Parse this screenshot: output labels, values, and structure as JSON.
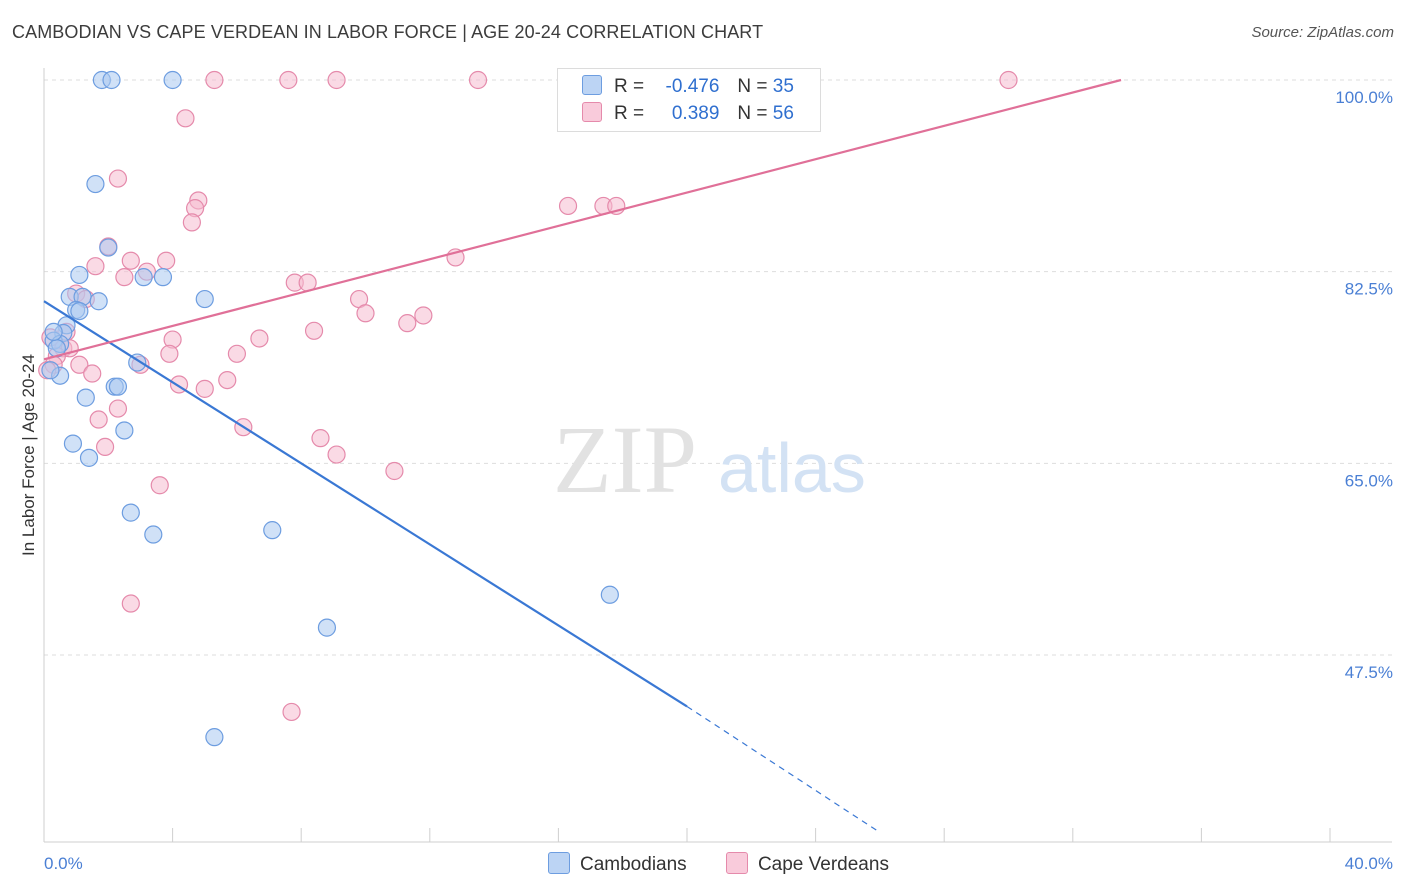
{
  "title": "CAMBODIAN VS CAPE VERDEAN IN LABOR FORCE | AGE 20-24 CORRELATION CHART",
  "source": "Source: ZipAtlas.com",
  "watermark": {
    "zip": "ZIP",
    "atlas": "atlas"
  },
  "colors": {
    "cambodian_fill": "#aac8f0",
    "cambodian_stroke": "#6d9de0",
    "cambodian_line": "#3a78d4",
    "capeverdean_fill": "#f6bcd0",
    "capeverdean_stroke": "#e58aab",
    "capeverdean_line": "#e07098",
    "tick_text": "#4a7fd4",
    "grid": "#dddddd"
  },
  "legend": {
    "rows": [
      {
        "r_label": "R =",
        "r_value": "-0.476",
        "n_label": "N =",
        "n_value": "35"
      },
      {
        "r_label": "R =",
        "r_value": "0.389",
        "n_label": "N =",
        "n_value": "56"
      }
    ]
  },
  "bottom_legend": {
    "cambodians": "Cambodians",
    "capeverdeans": "Cape Verdeans"
  },
  "chart_data": {
    "type": "scatter",
    "xlabel": "",
    "ylabel": "In Labor Force | Age 20-24",
    "xlim": [
      0,
      40
    ],
    "ylim": [
      31,
      101.5
    ],
    "x_tick_labels": [
      "0.0%",
      "40.0%"
    ],
    "y_ticks": [
      47.5,
      65.0,
      82.5,
      100.0
    ],
    "y_tick_labels": [
      "47.5%",
      "65.0%",
      "82.5%",
      "100.0%"
    ],
    "series": [
      {
        "name": "Cambodians",
        "r": -0.476,
        "n": 35,
        "trend": {
          "x0": 0,
          "y0": 79.8,
          "x1": 20,
          "y1": 42.8,
          "dash_x1": 26,
          "dash_y1": 31.3
        },
        "points": [
          [
            1.8,
            100
          ],
          [
            2.1,
            100
          ],
          [
            4.0,
            100
          ],
          [
            1.6,
            90.5
          ],
          [
            2.0,
            84.7
          ],
          [
            1.1,
            82.2
          ],
          [
            3.1,
            82.0
          ],
          [
            3.7,
            82.0
          ],
          [
            0.8,
            80.2
          ],
          [
            1.2,
            80.2
          ],
          [
            1.7,
            79.8
          ],
          [
            1.0,
            79.0
          ],
          [
            1.1,
            78.9
          ],
          [
            5.0,
            80.0
          ],
          [
            0.7,
            77.6
          ],
          [
            0.6,
            76.9
          ],
          [
            0.3,
            76.2
          ],
          [
            0.5,
            75.9
          ],
          [
            0.4,
            75.5
          ],
          [
            2.9,
            74.2
          ],
          [
            0.5,
            73.0
          ],
          [
            2.2,
            72.0
          ],
          [
            2.3,
            72.0
          ],
          [
            1.3,
            71.0
          ],
          [
            2.5,
            68.0
          ],
          [
            0.9,
            66.8
          ],
          [
            1.4,
            65.5
          ],
          [
            2.7,
            60.5
          ],
          [
            3.4,
            58.5
          ],
          [
            7.1,
            58.9
          ],
          [
            17.6,
            53.0
          ],
          [
            8.8,
            50.0
          ],
          [
            5.3,
            40.0
          ],
          [
            0.2,
            73.5
          ],
          [
            0.3,
            77.0
          ]
        ]
      },
      {
        "name": "Cape Verdeans",
        "r": 0.389,
        "n": 56,
        "trend": {
          "x0": 0,
          "y0": 74.5,
          "x1": 33.5,
          "y1": 100
        },
        "points": [
          [
            5.3,
            100
          ],
          [
            7.6,
            100
          ],
          [
            9.1,
            100
          ],
          [
            13.5,
            100
          ],
          [
            30.0,
            100
          ],
          [
            4.4,
            96.5
          ],
          [
            2.3,
            91.0
          ],
          [
            4.8,
            89.0
          ],
          [
            4.7,
            88.3
          ],
          [
            4.6,
            87.0
          ],
          [
            16.3,
            88.5
          ],
          [
            17.4,
            88.5
          ],
          [
            17.8,
            88.5
          ],
          [
            2.0,
            84.8
          ],
          [
            1.6,
            83.0
          ],
          [
            2.7,
            83.5
          ],
          [
            3.8,
            83.5
          ],
          [
            12.8,
            83.8
          ],
          [
            3.2,
            82.5
          ],
          [
            2.5,
            82.0
          ],
          [
            7.8,
            81.5
          ],
          [
            8.2,
            81.5
          ],
          [
            1.0,
            80.5
          ],
          [
            1.3,
            80.0
          ],
          [
            9.8,
            80.0
          ],
          [
            10.0,
            78.7
          ],
          [
            11.8,
            78.5
          ],
          [
            11.3,
            77.8
          ],
          [
            8.4,
            77.1
          ],
          [
            0.7,
            77.0
          ],
          [
            6.7,
            76.4
          ],
          [
            4.0,
            76.3
          ],
          [
            0.6,
            75.5
          ],
          [
            0.8,
            75.5
          ],
          [
            3.9,
            75.0
          ],
          [
            6.0,
            75.0
          ],
          [
            0.4,
            74.8
          ],
          [
            0.3,
            74.0
          ],
          [
            1.1,
            74.0
          ],
          [
            3.0,
            74.0
          ],
          [
            0.1,
            73.5
          ],
          [
            1.5,
            73.2
          ],
          [
            5.7,
            72.6
          ],
          [
            4.2,
            72.2
          ],
          [
            5.0,
            71.8
          ],
          [
            2.3,
            70.0
          ],
          [
            1.7,
            69.0
          ],
          [
            6.2,
            68.3
          ],
          [
            8.6,
            67.3
          ],
          [
            1.9,
            66.5
          ],
          [
            9.1,
            65.8
          ],
          [
            10.9,
            64.3
          ],
          [
            3.6,
            63.0
          ],
          [
            2.7,
            52.2
          ],
          [
            7.7,
            42.3
          ],
          [
            0.2,
            76.5
          ]
        ]
      }
    ]
  }
}
